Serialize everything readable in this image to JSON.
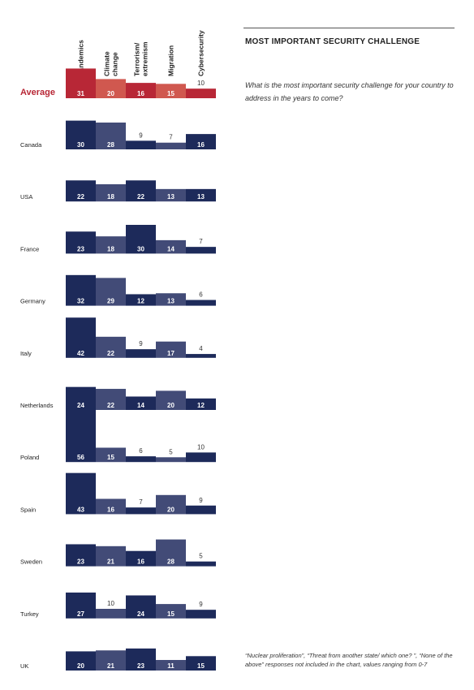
{
  "title": "MOST IMPORTANT SECURITY CHALLENGE",
  "question": "What is the most important security challenge for your country to address in the years to come?",
  "footnote": "“Nuclear proliferation”, “Threat from another state/ which one? ”, “None of the above” responses not included in the chart, values ranging from 0-7",
  "colors": {
    "avg_dark": "#b82736",
    "avg_light": "#d0584f",
    "country_dark": "#1d2a5a",
    "country_light": "#424b77",
    "avg_label": "#b82736",
    "text": "#222222"
  },
  "chart_data": {
    "type": "bar",
    "categories": [
      "Pandemics",
      "Climate change",
      "Terrorism/ extremism",
      "Migration",
      "Cybersecurity"
    ],
    "column_headers": [
      [
        "Pandemics"
      ],
      [
        "Climate",
        "change"
      ],
      [
        "Terrorism/",
        "extremism"
      ],
      [
        "Migration"
      ],
      [
        "Cybersecurity"
      ]
    ],
    "average": {
      "name": "Average",
      "values": [
        31,
        20,
        16,
        15,
        10
      ]
    },
    "series": [
      {
        "name": "Canada",
        "values": [
          30,
          28,
          9,
          7,
          16
        ]
      },
      {
        "name": "USA",
        "values": [
          22,
          18,
          22,
          13,
          13
        ]
      },
      {
        "name": "France",
        "values": [
          23,
          18,
          30,
          14,
          7
        ]
      },
      {
        "name": "Germany",
        "values": [
          32,
          29,
          12,
          13,
          6
        ]
      },
      {
        "name": "Italy",
        "values": [
          42,
          22,
          9,
          17,
          4
        ]
      },
      {
        "name": "Netherlands",
        "values": [
          24,
          22,
          14,
          20,
          12
        ]
      },
      {
        "name": "Poland",
        "values": [
          56,
          15,
          6,
          5,
          10
        ]
      },
      {
        "name": "Spain",
        "values": [
          43,
          16,
          7,
          20,
          9
        ]
      },
      {
        "name": "Sweden",
        "values": [
          23,
          21,
          16,
          28,
          5
        ]
      },
      {
        "name": "Turkey",
        "values": [
          27,
          10,
          24,
          15,
          9
        ]
      },
      {
        "name": "UK",
        "values": [
          20,
          21,
          23,
          11,
          15
        ]
      }
    ]
  }
}
